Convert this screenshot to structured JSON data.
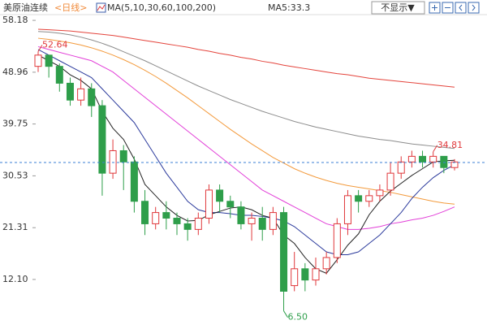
{
  "chart_data": {
    "type": "candlestick",
    "title": "美原油连续",
    "period": "<日线>",
    "indicator": "MA(5,10,30,60,100,200)",
    "ma_readout": "MA5:33.3",
    "button": "不显示▼",
    "ylim": [
      4.0,
      59.2
    ],
    "yticks": [
      {
        "value": 58.18,
        "label": "58.18"
      },
      {
        "value": 48.96,
        "label": "48.96"
      },
      {
        "value": 39.75,
        "label": "39.75"
      },
      {
        "value": 30.53,
        "label": "30.53"
      },
      {
        "value": 21.31,
        "label": "21.31"
      },
      {
        "value": 12.1,
        "label": "12.10"
      }
    ],
    "up_color": "#e0383b",
    "down_color": "#2e9e4a",
    "open": [
      50,
      52,
      50,
      47,
      44,
      46,
      43,
      31,
      35,
      33,
      26,
      22,
      24,
      23,
      22,
      21,
      23,
      28,
      26,
      25,
      22,
      23,
      21,
      24,
      11,
      14,
      12,
      14,
      16,
      22,
      27,
      26,
      27,
      28,
      31,
      33,
      34,
      33,
      34,
      32
    ],
    "high": [
      52.64,
      52,
      50.5,
      48,
      48,
      47,
      44,
      37,
      36,
      34,
      28,
      25,
      26,
      24,
      23,
      24,
      29,
      29,
      27,
      26,
      24,
      25,
      25,
      25,
      17,
      15,
      16,
      17,
      23,
      28,
      28,
      28,
      29,
      33,
      34,
      35,
      35,
      34.81,
      34,
      33.5
    ],
    "low": [
      49,
      48,
      45.5,
      43,
      43,
      41,
      27,
      30,
      28,
      24,
      20,
      21,
      21,
      20,
      19,
      20,
      22,
      24,
      23,
      21,
      19,
      19,
      20,
      6.5,
      10,
      10,
      11,
      13,
      15,
      20,
      24,
      25,
      26,
      27,
      30,
      32,
      32,
      32,
      31,
      31.5
    ],
    "close": [
      52,
      50,
      47,
      44,
      46,
      43,
      31,
      35,
      33,
      26,
      22,
      24,
      23,
      22,
      21,
      23,
      28,
      26,
      25,
      22,
      23,
      21,
      24,
      10,
      14,
      12,
      14,
      16,
      22,
      27,
      26,
      27,
      28,
      31,
      33,
      34,
      33,
      34,
      32,
      33
    ],
    "ma_series": [
      {
        "color": "#e4443c",
        "values": [
          56.6,
          56.5,
          56.4,
          56.3,
          56.1,
          55.9,
          55.7,
          55.5,
          55.2,
          54.9,
          54.6,
          54.3,
          54,
          53.7,
          53.4,
          53,
          52.7,
          52.3,
          52,
          51.6,
          51.3,
          50.9,
          50.6,
          50.2,
          49.9,
          49.6,
          49.3,
          49,
          48.7,
          48.5,
          48.2,
          47.9,
          47.7,
          47.5,
          47.3,
          47.1,
          46.9,
          46.7,
          46.5,
          46.3
        ]
      },
      {
        "color": "#8c8c8c",
        "values": [
          56.2,
          56.1,
          55.9,
          55.6,
          55.2,
          54.7,
          54.1,
          53.4,
          52.6,
          51.8,
          51,
          50.1,
          49.2,
          48.3,
          47.4,
          46.5,
          45.7,
          44.9,
          44.1,
          43.4,
          42.7,
          42,
          41.4,
          40.8,
          40.2,
          39.7,
          39.2,
          38.8,
          38.4,
          38,
          37.6,
          37.3,
          37,
          36.8,
          36.5,
          36.2,
          36,
          35.8,
          35.6,
          35.4
        ]
      },
      {
        "color": "#f39a3c",
        "values": [
          55,
          54.8,
          54.5,
          54.2,
          53.8,
          53.3,
          52.7,
          52,
          51.2,
          50.3,
          49.3,
          48.2,
          47,
          45.7,
          44.4,
          43,
          41.6,
          40.2,
          38.8,
          37.5,
          36.2,
          35,
          33.8,
          32.8,
          31.8,
          31,
          30.3,
          29.7,
          29.2,
          28.8,
          28.5,
          28.2,
          27.9,
          27.6,
          27.2,
          26.8,
          26.4,
          26,
          25.7,
          25.5
        ]
      },
      {
        "color": "#e23fd8",
        "values": [
          53.5,
          53,
          52.5,
          52,
          51.5,
          51,
          50,
          49,
          47.5,
          46,
          44.5,
          43,
          41.5,
          40,
          38.5,
          37,
          35.5,
          34,
          32.5,
          31,
          29.5,
          28,
          27,
          26,
          25,
          24,
          23,
          22,
          21.5,
          21,
          21,
          21.2,
          21.5,
          22,
          22.3,
          22.7,
          23,
          23.5,
          24.2,
          25
        ]
      },
      {
        "color": "#2b3a9c",
        "values": [
          53,
          52,
          51,
          50,
          49,
          48,
          46,
          44,
          42,
          40,
          37,
          34,
          31,
          28.5,
          26,
          24.5,
          24,
          24,
          23.8,
          23.5,
          23.5,
          23.3,
          23,
          22.5,
          21.5,
          20,
          18.5,
          17,
          16.5,
          16.5,
          17,
          18.5,
          20,
          22,
          24,
          26.5,
          28.5,
          30.2,
          31.5,
          32.5
        ]
      },
      {
        "color": "#222222",
        "values": [
          52,
          51,
          50,
          48.5,
          47.5,
          46,
          42,
          39,
          37,
          33.5,
          29,
          27,
          25,
          23.5,
          22.5,
          22.6,
          23.6,
          24.2,
          24.8,
          25,
          24.5,
          23.5,
          23,
          20,
          18.5,
          16,
          14,
          13.2,
          15.6,
          18.2,
          20.2,
          23.6,
          26,
          27.8,
          29.2,
          30.6,
          31.8,
          33,
          33.2,
          33.3
        ]
      }
    ],
    "last_price": 32.9,
    "annotations": [
      {
        "value": 52.64,
        "label": "52.64",
        "kind": "high",
        "color": "#e0383b"
      },
      {
        "value": 34.81,
        "label": "34.81",
        "kind": "high",
        "color": "#e0383b"
      },
      {
        "value": 6.5,
        "label": "6.50",
        "kind": "low",
        "color": "#2e9e4a"
      }
    ]
  }
}
